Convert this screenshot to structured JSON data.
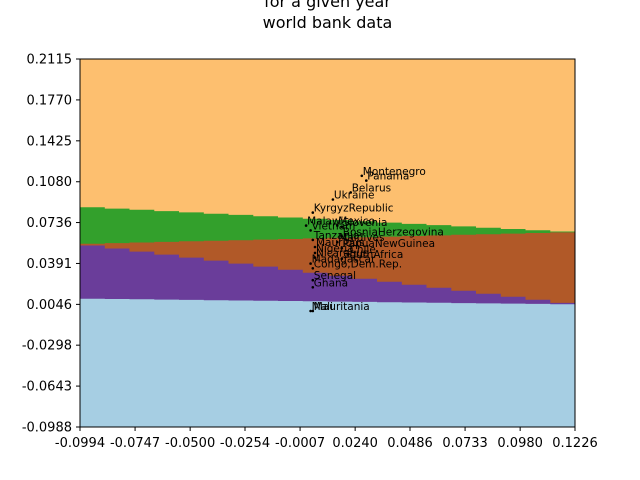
{
  "chart_data": {
    "type": "scatter",
    "title_lines": [
      "for a given year",
      "world bank data"
    ],
    "xlabel": "",
    "ylabel": "",
    "xlim": [
      -0.0994,
      0.1226
    ],
    "ylim": [
      -0.0988,
      0.2115
    ],
    "x_ticks": [
      "-0.0994",
      "-0.0747",
      "-0.0500",
      "-0.0254",
      "-0.0007",
      "0.0240",
      "0.0486",
      "0.0733",
      "0.0980",
      "0.1226"
    ],
    "y_ticks": [
      "-0.0988",
      "-0.0643",
      "-0.0298",
      "0.0046",
      "0.0391",
      "0.0736",
      "0.1080",
      "0.1425",
      "0.1770",
      "0.2115"
    ],
    "x_tick_values": [
      -0.0994,
      -0.0747,
      -0.05,
      -0.0254,
      -0.0007,
      0.024,
      0.0486,
      0.0733,
      0.098,
      0.1226
    ],
    "y_tick_values": [
      -0.0988,
      -0.0643,
      -0.0298,
      0.0046,
      0.0391,
      0.0736,
      0.108,
      0.1425,
      0.177,
      0.2115
    ],
    "regions": [
      {
        "color": "#a6cee3",
        "upper_left": 0.0095,
        "upper_right": 0.0046
      },
      {
        "color": "#6a3d9a",
        "upper_left": 0.0555,
        "upper_right": 0.0046
      },
      {
        "color": "#b15928",
        "upper_left": 0.0555,
        "upper_right": 0.0655
      },
      {
        "color": "#33a02c",
        "upper_left": 0.087,
        "upper_right": 0.0655
      },
      {
        "color": "#fdbf6f",
        "upper_left": 0.2115,
        "upper_right": 0.2115
      }
    ],
    "points": [
      {
        "label": "Montenegro",
        "x": 0.027,
        "y": 0.113
      },
      {
        "label": "Panama",
        "x": 0.029,
        "y": 0.109
      },
      {
        "label": "Belarus",
        "x": 0.022,
        "y": 0.099
      },
      {
        "label": "Ukraine",
        "x": 0.014,
        "y": 0.093
      },
      {
        "label": "KyrgyzRepublic",
        "x": 0.005,
        "y": 0.082
      },
      {
        "label": "Malawi",
        "x": 0.002,
        "y": 0.071
      },
      {
        "label": "Mexico",
        "x": 0.016,
        "y": 0.071
      },
      {
        "label": "Slovenia",
        "x": 0.018,
        "y": 0.07
      },
      {
        "label": "Vietnam",
        "x": 0.004,
        "y": 0.067
      },
      {
        "label": "BosniaHerzegovina",
        "x": 0.018,
        "y": 0.062
      },
      {
        "label": "Tanzania",
        "x": 0.005,
        "y": 0.059
      },
      {
        "label": "Maldives",
        "x": 0.016,
        "y": 0.057
      },
      {
        "label": "Mauritius",
        "x": 0.006,
        "y": 0.053
      },
      {
        "label": "PapuaNewGuinea",
        "x": 0.018,
        "y": 0.052
      },
      {
        "label": "Nigeria",
        "x": 0.006,
        "y": 0.048
      },
      {
        "label": "Chile",
        "x": 0.021,
        "y": 0.047
      },
      {
        "label": "Nicaragua",
        "x": 0.006,
        "y": 0.044
      },
      {
        "label": "SouthAfrica",
        "x": 0.018,
        "y": 0.043
      },
      {
        "label": "Madagascar",
        "x": 0.004,
        "y": 0.039
      },
      {
        "label": "Congo,Dem.Rep.",
        "x": 0.005,
        "y": 0.035
      },
      {
        "label": "Senegal",
        "x": 0.005,
        "y": 0.025
      },
      {
        "label": "Ghana",
        "x": 0.005,
        "y": 0.019
      },
      {
        "label": "Mali",
        "x": 0.004,
        "y": -0.001
      },
      {
        "label": "Mauritania",
        "x": 0.005,
        "y": -0.001
      }
    ]
  }
}
